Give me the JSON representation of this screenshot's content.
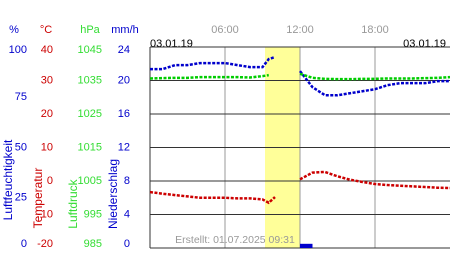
{
  "chart_data": {
    "type": "line",
    "xlim": [
      0,
      24
    ],
    "xticks": [
      {
        "value": 6,
        "label": "06:00"
      },
      {
        "value": 12,
        "label": "12:00"
      },
      {
        "value": 18,
        "label": "18:00"
      }
    ],
    "date_start": "03.01.19",
    "date_end": "03.01.19",
    "footer": "Erstellt: 01.07.2025 09:31",
    "highlight": [
      9.2,
      12
    ],
    "x": [
      0,
      1,
      2,
      3,
      4,
      5,
      6,
      7,
      8,
      9,
      9.5,
      10,
      11,
      12,
      13,
      14,
      15,
      16,
      17,
      18,
      19,
      20,
      21,
      22,
      23,
      24
    ],
    "series": [
      {
        "name": "Luftfeuchtigkeit",
        "unit": "%",
        "color": "#0000cc",
        "kind": "line",
        "ylim": [
          0,
          100
        ],
        "yticks": [
          100,
          75,
          50,
          25,
          0
        ],
        "values": [
          89,
          89,
          91,
          91,
          92,
          92,
          92,
          91,
          90,
          90,
          94,
          95,
          null,
          88,
          80,
          76,
          76,
          77,
          78,
          79,
          81,
          82,
          82,
          82,
          83,
          83
        ]
      },
      {
        "name": "Temperatur",
        "unit": "°C",
        "color": "#cc0000",
        "kind": "line",
        "ylim": [
          -20,
          40
        ],
        "yticks": [
          40,
          30,
          20,
          10,
          0,
          -10,
          -20
        ],
        "values": [
          -3.3,
          -3.8,
          -4.2,
          -4.6,
          -5,
          -5,
          -5,
          -5.2,
          -5.2,
          -5.5,
          -6.5,
          -4.8,
          null,
          0.5,
          2.5,
          2.7,
          1.4,
          0.4,
          -0.3,
          -0.9,
          -1.2,
          -1.4,
          -1.6,
          -1.8,
          -2,
          -2.1
        ]
      },
      {
        "name": "Luftdruck",
        "unit": "hPa",
        "color": "#00cc00",
        "kind": "line",
        "ylim": [
          985,
          1045
        ],
        "yticks": [
          1045,
          1035,
          1025,
          1015,
          1005,
          995,
          985
        ],
        "values": [
          1035.6,
          1035.7,
          1035.8,
          1035.8,
          1036,
          1036,
          1036,
          1036,
          1035.9,
          1036.3,
          1036.6,
          null,
          null,
          1037,
          1035.8,
          1035.5,
          1035.4,
          1035.4,
          1035.5,
          1035.5,
          1035.6,
          1035.6,
          1035.6,
          1035.7,
          1035.8,
          1036
        ]
      },
      {
        "name": "Niederschlag",
        "unit": "mm/h",
        "color": "#0000cc",
        "kind": "bar",
        "ylim": [
          0,
          24
        ],
        "yticks": [
          24,
          20,
          16,
          12,
          8,
          4,
          0
        ],
        "values": [
          0,
          0,
          0,
          0,
          0,
          0,
          0,
          0,
          0,
          0,
          0,
          0,
          0,
          0.5,
          0,
          0,
          0,
          0,
          0,
          0,
          0,
          0,
          0,
          0,
          0,
          0
        ]
      }
    ]
  }
}
